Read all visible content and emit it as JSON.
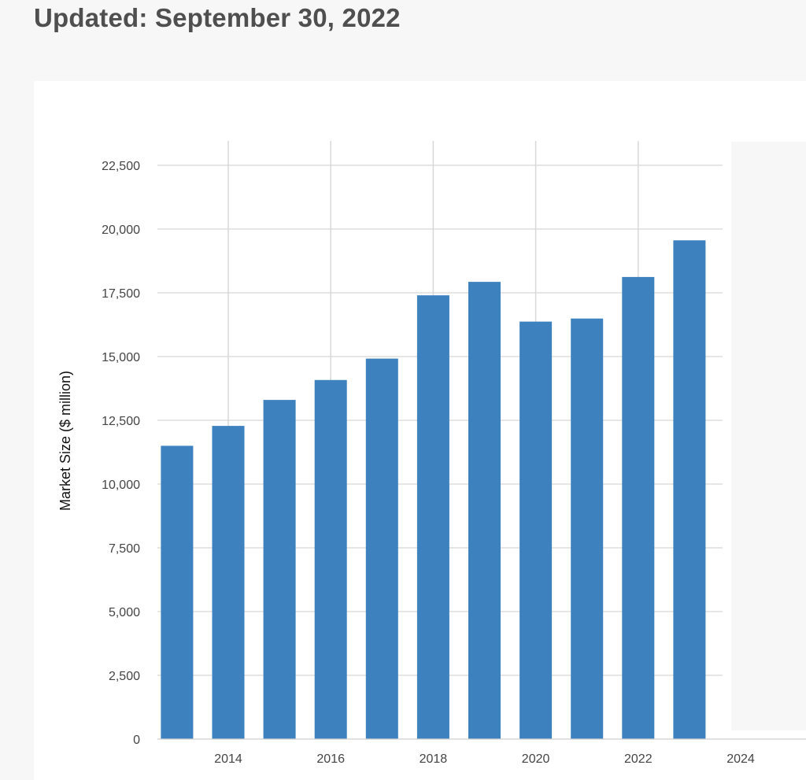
{
  "header": {
    "title": "Updated: September 30, 2022"
  },
  "colors": {
    "bar": "#3d82bf",
    "grid": "#d8d8d8",
    "title": "#4f4f4f",
    "side_panel": "#f7f7f7"
  },
  "chart_data": {
    "type": "bar",
    "x": [
      2013,
      2014,
      2015,
      2016,
      2017,
      2018,
      2019,
      2020,
      2021,
      2022,
      2023
    ],
    "values": [
      11500,
      12280,
      13300,
      14080,
      14920,
      17400,
      17930,
      16370,
      16490,
      18120,
      19560
    ],
    "xlabel": "",
    "ylabel": "Market Size ($ million)",
    "ylim": [
      0,
      23500
    ],
    "xlim": [
      2012.2,
      2025.5
    ],
    "yticks": [
      0,
      2500,
      5000,
      7500,
      10000,
      12500,
      15000,
      17500,
      20000,
      22500
    ],
    "ytick_labels": [
      "0",
      "2,500",
      "5,000",
      "7,500",
      "10,000",
      "12,500",
      "15,000",
      "17,500",
      "20,000",
      "22,500"
    ],
    "xticks": [
      2014,
      2016,
      2018,
      2020,
      2022,
      2024
    ],
    "xtick_labels": [
      "2014",
      "2016",
      "2018",
      "2020",
      "2022",
      "2024"
    ],
    "grid": true,
    "legend": "none"
  }
}
